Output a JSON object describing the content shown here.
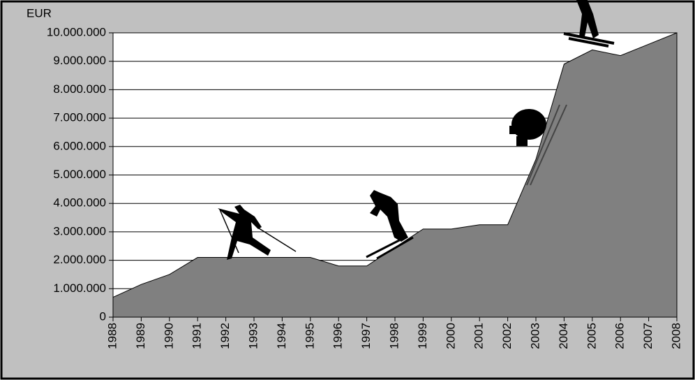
{
  "chart_data": {
    "type": "area",
    "y_axis_label": "EUR",
    "categories": [
      "1988",
      "1989",
      "1990",
      "1991",
      "1992",
      "1993",
      "1994",
      "1995",
      "1996",
      "1997",
      "1998",
      "1999",
      "2000",
      "2001",
      "2002",
      "2003",
      "2004",
      "2005",
      "2006",
      "2007",
      "2008"
    ],
    "values": [
      700000,
      1150000,
      1500000,
      2100000,
      2100000,
      2100000,
      2100000,
      2100000,
      1800000,
      1800000,
      2450000,
      3100000,
      3100000,
      3250000,
      3250000,
      5550000,
      8900000,
      9400000,
      9200000,
      9600000,
      10000000
    ],
    "color": "#808080",
    "ylim": [
      0,
      10000000
    ],
    "yticks": [
      0,
      {
        "value": 1000000,
        "label": "1.000.000"
      },
      {
        "value": 2000000,
        "label": "2.000.000"
      },
      {
        "value": 3000000,
        "label": "3.000.000"
      },
      {
        "value": 4000000,
        "label": "4.000.000"
      },
      {
        "value": 5000000,
        "label": "5.000.000"
      },
      {
        "value": 6000000,
        "label": "6.000.000"
      },
      {
        "value": 7000000,
        "label": "7.000.000"
      },
      {
        "value": 8000000,
        "label": "8.000.000"
      },
      {
        "value": 9000000,
        "label": "9.000.000"
      },
      {
        "value": 10000000,
        "label": "10.000.000"
      }
    ],
    "grid": true
  }
}
